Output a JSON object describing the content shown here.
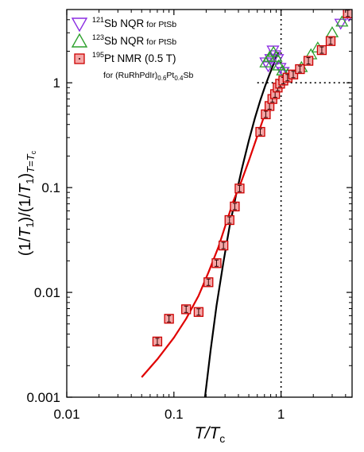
{
  "chart_data": {
    "type": "scatter",
    "x_scale": "log",
    "y_scale": "log",
    "xlim": [
      0.01,
      4.6
    ],
    "ylim": [
      0.001,
      5
    ],
    "x_ticks": [
      {
        "value": 0.01,
        "label": "0.01"
      },
      {
        "value": 0.1,
        "label": "0.1"
      },
      {
        "value": 1,
        "label": "1"
      }
    ],
    "y_ticks": [
      {
        "value": 0.001,
        "label": "0.001"
      },
      {
        "value": 0.01,
        "label": "0.01"
      },
      {
        "value": 0.1,
        "label": "0.1"
      },
      {
        "value": 1,
        "label": "1"
      }
    ],
    "xlabel": {
      "main": "T/T",
      "sub": "c"
    },
    "ylabel": {
      "pre": "(1/",
      "t1": "T",
      "s1": "1",
      "mid": ")/(1/",
      "t2": "T",
      "s2": "1",
      "post": ")",
      "sub_t": "T",
      "sub_rest": "=",
      "sub_tc": "T",
      "sub_c": "c"
    },
    "legend": {
      "placement": "top-left",
      "entries": [
        {
          "sup": "121",
          "text": "Sb NQR",
          "small": " for PtSb",
          "marker": "triangle-down",
          "color": "#8a2be2"
        },
        {
          "sup": "123",
          "text": "Sb NQR",
          "small": " for PtSb",
          "marker": "triangle-up",
          "color": "#2ca02c"
        },
        {
          "sup": "195",
          "text": "Pt NMR (0.5 T)",
          "small": "",
          "marker": "square",
          "color": "#cc0000"
        }
      ],
      "sample": {
        "pre": "for (RuRhPdIr)",
        "sub1": "0.6",
        "mid": "Pt",
        "sub2": "0.4",
        "post": "Sb"
      }
    },
    "reference_lines": {
      "x": 1,
      "y": 1,
      "style": "dotted"
    },
    "series": [
      {
        "name": "121Sb NQR for PtSb",
        "marker": "triangle-down",
        "color": "#8a2be2",
        "points": [
          {
            "x": 0.72,
            "y": 1.58
          },
          {
            "x": 0.76,
            "y": 1.45
          },
          {
            "x": 0.8,
            "y": 1.7
          },
          {
            "x": 0.84,
            "y": 2.05
          },
          {
            "x": 0.88,
            "y": 1.85
          },
          {
            "x": 0.93,
            "y": 1.7
          },
          {
            "x": 0.98,
            "y": 1.4
          },
          {
            "x": 1.05,
            "y": 1.28
          },
          {
            "x": 1.2,
            "y": 1.2
          },
          {
            "x": 3.6,
            "y": 3.7
          },
          {
            "x": 4.3,
            "y": 4.4
          }
        ]
      },
      {
        "name": "123Sb NQR for PtSb",
        "marker": "triangle-up",
        "color": "#2ca02c",
        "points": [
          {
            "x": 0.72,
            "y": 1.55
          },
          {
            "x": 0.78,
            "y": 1.75
          },
          {
            "x": 0.85,
            "y": 1.95
          },
          {
            "x": 0.9,
            "y": 1.75
          },
          {
            "x": 0.95,
            "y": 1.45
          },
          {
            "x": 1.03,
            "y": 1.3
          },
          {
            "x": 1.15,
            "y": 1.2
          },
          {
            "x": 1.55,
            "y": 1.4
          },
          {
            "x": 1.9,
            "y": 1.85
          },
          {
            "x": 2.2,
            "y": 2.15
          },
          {
            "x": 3.0,
            "y": 3.0
          },
          {
            "x": 3.7,
            "y": 3.8
          },
          {
            "x": 4.3,
            "y": 4.6
          }
        ]
      },
      {
        "name": "195Pt NMR (0.5 T)",
        "marker": "square",
        "color": "#cc0000",
        "points": [
          {
            "x": 0.07,
            "y": 0.0034
          },
          {
            "x": 0.09,
            "y": 0.0056
          },
          {
            "x": 0.13,
            "y": 0.0069
          },
          {
            "x": 0.17,
            "y": 0.0065
          },
          {
            "x": 0.21,
            "y": 0.0125
          },
          {
            "x": 0.25,
            "y": 0.019
          },
          {
            "x": 0.29,
            "y": 0.028
          },
          {
            "x": 0.33,
            "y": 0.049
          },
          {
            "x": 0.37,
            "y": 0.066
          },
          {
            "x": 0.41,
            "y": 0.098
          },
          {
            "x": 0.64,
            "y": 0.34
          },
          {
            "x": 0.72,
            "y": 0.5
          },
          {
            "x": 0.78,
            "y": 0.6
          },
          {
            "x": 0.83,
            "y": 0.7
          },
          {
            "x": 0.88,
            "y": 0.78
          },
          {
            "x": 0.93,
            "y": 0.9
          },
          {
            "x": 0.98,
            "y": 0.98
          },
          {
            "x": 1.05,
            "y": 1.05
          },
          {
            "x": 1.15,
            "y": 1.12
          },
          {
            "x": 1.3,
            "y": 1.2
          },
          {
            "x": 1.5,
            "y": 1.35
          },
          {
            "x": 1.8,
            "y": 1.62
          },
          {
            "x": 2.4,
            "y": 2.05
          },
          {
            "x": 2.9,
            "y": 2.5
          },
          {
            "x": 4.2,
            "y": 4.6
          }
        ]
      }
    ],
    "curves": [
      {
        "color": "#000000",
        "points": [
          {
            "x": 0.195,
            "y": 0.001
          },
          {
            "x": 0.22,
            "y": 0.0028
          },
          {
            "x": 0.25,
            "y": 0.0075
          },
          {
            "x": 0.29,
            "y": 0.0195
          },
          {
            "x": 0.33,
            "y": 0.042
          },
          {
            "x": 0.38,
            "y": 0.085
          },
          {
            "x": 0.43,
            "y": 0.15
          },
          {
            "x": 0.5,
            "y": 0.28
          },
          {
            "x": 0.57,
            "y": 0.46
          },
          {
            "x": 0.64,
            "y": 0.68
          },
          {
            "x": 0.71,
            "y": 0.93
          },
          {
            "x": 0.78,
            "y": 1.2
          },
          {
            "x": 0.85,
            "y": 1.5
          },
          {
            "x": 0.9,
            "y": 1.75
          },
          {
            "x": 0.93,
            "y": 1.9
          },
          {
            "x": 0.95,
            "y": 1.95
          }
        ]
      },
      {
        "color": "#e00000",
        "points": [
          {
            "x": 0.05,
            "y": 0.00155
          },
          {
            "x": 0.07,
            "y": 0.0023
          },
          {
            "x": 0.1,
            "y": 0.0037
          },
          {
            "x": 0.13,
            "y": 0.0056
          },
          {
            "x": 0.17,
            "y": 0.0093
          },
          {
            "x": 0.21,
            "y": 0.0155
          },
          {
            "x": 0.26,
            "y": 0.027
          },
          {
            "x": 0.31,
            "y": 0.047
          },
          {
            "x": 0.36,
            "y": 0.075
          },
          {
            "x": 0.42,
            "y": 0.11
          },
          {
            "x": 0.5,
            "y": 0.18
          },
          {
            "x": 0.58,
            "y": 0.28
          },
          {
            "x": 0.67,
            "y": 0.43
          },
          {
            "x": 0.75,
            "y": 0.6
          },
          {
            "x": 0.83,
            "y": 0.78
          },
          {
            "x": 0.9,
            "y": 0.91
          },
          {
            "x": 0.96,
            "y": 0.99
          }
        ]
      }
    ]
  }
}
